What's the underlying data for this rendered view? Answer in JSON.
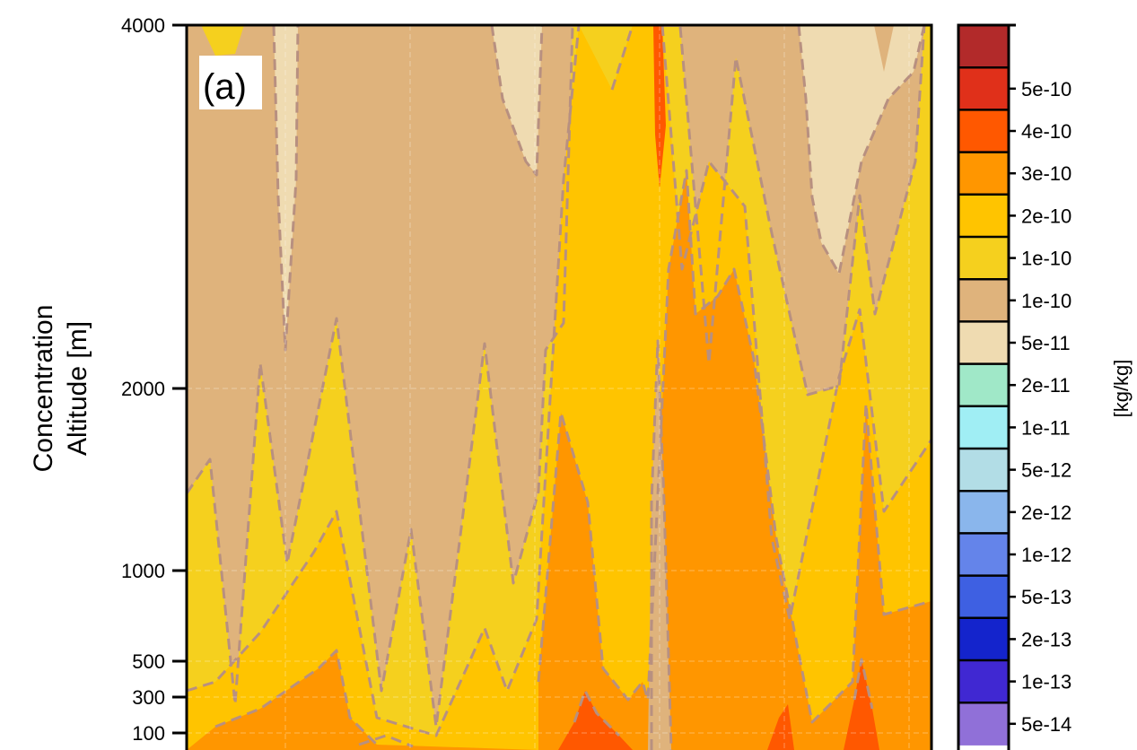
{
  "chart_data": {
    "type": "contour",
    "panel_label": "(a)",
    "ylabel": [
      "Concentration",
      "Altitude [m]"
    ],
    "yticks": [
      "4000",
      "2000",
      "1000",
      "500",
      "300",
      "100"
    ],
    "colorbar": {
      "label": "[kg/kg]",
      "tick_labels": [
        "5e-10",
        "4e-10",
        "3e-10",
        "2e-10",
        "1e-10",
        "1e-10",
        "5e-11",
        "2e-11",
        "1e-11",
        "5e-12",
        "2e-12",
        "1e-12",
        "5e-13",
        "2e-13",
        "1e-13",
        "5e-14"
      ],
      "colors_top_to_bottom": [
        "#b22a2a",
        "#e0301a",
        "#ff5800",
        "#ff9600",
        "#ffc400",
        "#f5d01e",
        "#dfb37c",
        "#efdbb1",
        "#a0e8c8",
        "#a0eef4",
        "#b2dde6",
        "#8ab6ec",
        "#6484ea",
        "#3e60e2",
        "#1424cc",
        "#4028d2",
        "#9070d8"
      ]
    },
    "fill_colors": {
      "band_5e-11_1e-10": "#dfb37c",
      "band_2e-11_5e-11": "#efdbb1",
      "band_1e-10_1e-10": "#f5d01e",
      "band_1e-10_2e-10": "#ffc400",
      "band_2e-10_3e-10": "#ff9600",
      "band_3e-10_4e-10": "#ff5800"
    },
    "contour_line_color": "#b89080",
    "grid": true
  }
}
